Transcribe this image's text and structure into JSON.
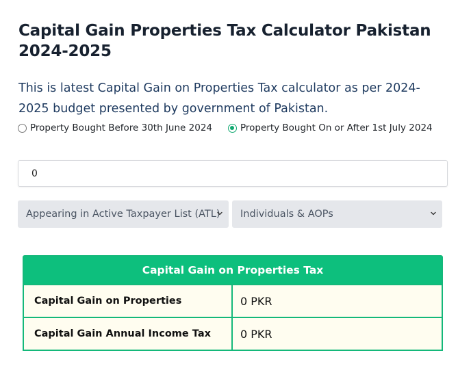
{
  "page": {
    "title": "Capital Gain Properties Tax Calculator Pakistan 2024-2025",
    "intro": "This is latest Capital Gain on Properties Tax calculator as per 2024-2025 budget presented by government of Pakistan."
  },
  "purchase_options": [
    {
      "label": "Property Bought Before 30th June 2024",
      "checked": false
    },
    {
      "label": "Property Bought On or After 1st July 2024",
      "checked": true
    }
  ],
  "amount_input": {
    "value": "0"
  },
  "taxpayer_status_select": {
    "selected": "Appearing in Active Taxpayer List (ATL)",
    "icon": "chevron-down-icon"
  },
  "taxpayer_type_select": {
    "selected": "Individuals & AOPs",
    "icon": "chevron-down-icon"
  },
  "result_table": {
    "header": "Capital Gain on Properties Tax",
    "rows": [
      {
        "label": "Capital Gain on Properties",
        "value": "0 PKR"
      },
      {
        "label": "Capital Gain Annual Income Tax",
        "value": "0 PKR"
      }
    ]
  },
  "colors": {
    "accent": "#0dbf7d",
    "border": "#14b87a",
    "table_bg": "#fffdf0",
    "intro_text": "#1e3a5f",
    "select_bg": "#e5e7eb"
  }
}
